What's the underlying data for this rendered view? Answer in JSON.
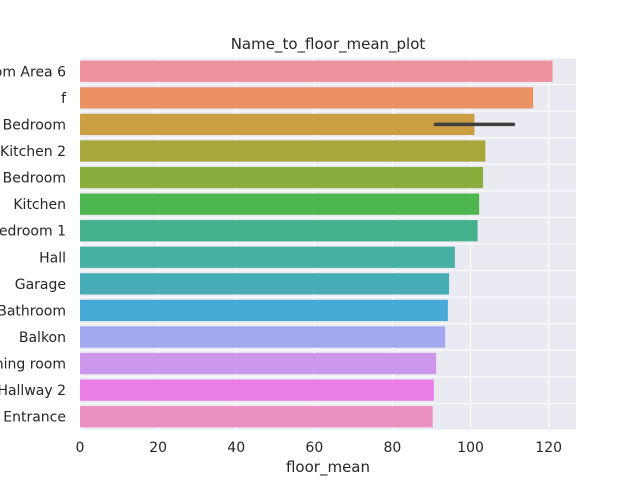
{
  "chart_data": {
    "type": "bar",
    "orientation": "horizontal",
    "title": "Name_to_floor_mean_plot",
    "xlabel": "floor_mean",
    "ylabel": "",
    "xlim": [
      0,
      127
    ],
    "xticks": [
      0,
      20,
      40,
      60,
      80,
      100,
      120
    ],
    "grid": true,
    "background": "#eaeaf2",
    "categories": [
      "om Area 6",
      "f",
      "r Bedroom",
      "Kitchen 2",
      "Bedroom",
      "Kitchen",
      "Bedroom 1",
      "Hall",
      "Garage",
      "Bathroom",
      "Balkon",
      "ning room",
      "Hallway 2",
      "Entrance"
    ],
    "values": [
      121,
      116,
      101,
      103.8,
      103.2,
      102.2,
      101.8,
      96,
      94.5,
      94.2,
      93.5,
      91.2,
      90.6,
      90.3
    ],
    "error_bars": [
      null,
      null,
      [
        91,
        111
      ],
      null,
      null,
      null,
      null,
      null,
      null,
      null,
      null,
      null,
      null,
      null
    ],
    "colors": [
      "#ee929e",
      "#eb9164",
      "#cb9e44",
      "#a8a73c",
      "#8aad3e",
      "#4db64e",
      "#44b08c",
      "#46b0a5",
      "#46acb5",
      "#47a9d6",
      "#a2a8f0",
      "#cd98ec",
      "#e97fe6",
      "#ea90c3"
    ]
  }
}
